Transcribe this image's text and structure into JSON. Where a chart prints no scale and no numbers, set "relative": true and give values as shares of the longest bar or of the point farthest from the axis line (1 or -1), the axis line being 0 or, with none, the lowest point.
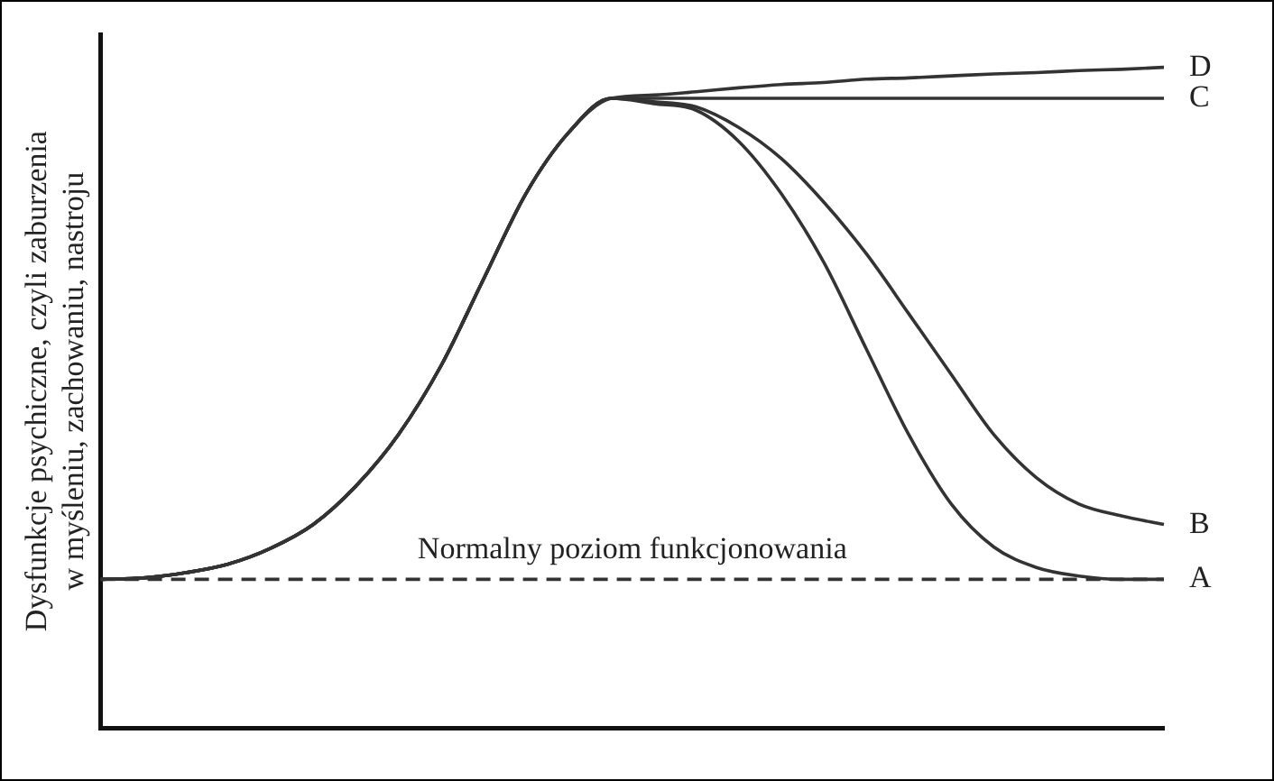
{
  "chart_data": {
    "type": "line",
    "relative": true,
    "ylabel": "Dysfunkcje psychiczne, czyli zaburzenia w myśleniu, zachowaniu, nastroju",
    "categories": [
      null,
      null,
      null,
      null,
      null,
      null,
      null,
      null,
      null,
      null,
      null,
      null,
      null,
      null,
      null,
      null,
      null,
      null,
      null,
      null,
      null,
      null,
      null,
      null,
      null,
      null
    ],
    "series": [
      {
        "name": "D",
        "color": "#333333",
        "values": [
          0.225,
          0.227,
          0.235,
          0.248,
          0.272,
          0.308,
          0.366,
          0.444,
          0.548,
          0.679,
          0.809,
          0.901,
          0.953,
          0.958,
          0.963,
          0.969,
          0.974,
          0.977,
          0.982,
          0.984,
          0.987,
          0.99,
          0.992,
          0.995,
          0.997,
          1
        ]
      },
      {
        "name": "C",
        "color": "#333333",
        "values": [
          0.225,
          0.227,
          0.235,
          0.248,
          0.272,
          0.308,
          0.366,
          0.444,
          0.548,
          0.679,
          0.809,
          0.901,
          0.953,
          0.953,
          0.953,
          0.953,
          0.953,
          0.953,
          0.953,
          0.953,
          0.953,
          0.953,
          0.953,
          0.953,
          0.953,
          0.953
        ]
      },
      {
        "name": "B",
        "color": "#333333",
        "values": [
          0.225,
          0.227,
          0.235,
          0.248,
          0.272,
          0.308,
          0.366,
          0.444,
          0.548,
          0.679,
          0.809,
          0.901,
          0.953,
          0.948,
          0.94,
          0.909,
          0.862,
          0.796,
          0.718,
          0.627,
          0.535,
          0.444,
          0.379,
          0.339,
          0.321,
          0.308
        ]
      },
      {
        "name": "A",
        "color": "#333333",
        "values": [
          0.225,
          0.227,
          0.235,
          0.248,
          0.272,
          0.308,
          0.366,
          0.444,
          0.548,
          0.679,
          0.809,
          0.901,
          0.953,
          0.945,
          0.935,
          0.888,
          0.809,
          0.705,
          0.574,
          0.444,
          0.339,
          0.274,
          0.243,
          0.23,
          0.225,
          0.225
        ]
      },
      {
        "color": "#333333",
        "line_style": "dashed",
        "values": [
          0.225,
          0.225,
          0.225,
          0.225,
          0.225,
          0.225,
          0.225,
          0.225,
          0.225,
          0.225,
          0.225,
          0.225,
          0.225,
          0.225,
          0.225,
          0.225,
          0.225,
          0.225,
          0.225,
          0.225,
          0.225,
          0.225,
          0.225,
          0.225,
          0.225,
          0.225
        ]
      }
    ],
    "annotations": [
      "Normalny poziom funkcjonowania"
    ],
    "grid": false,
    "legend": false,
    "marker": "none"
  }
}
